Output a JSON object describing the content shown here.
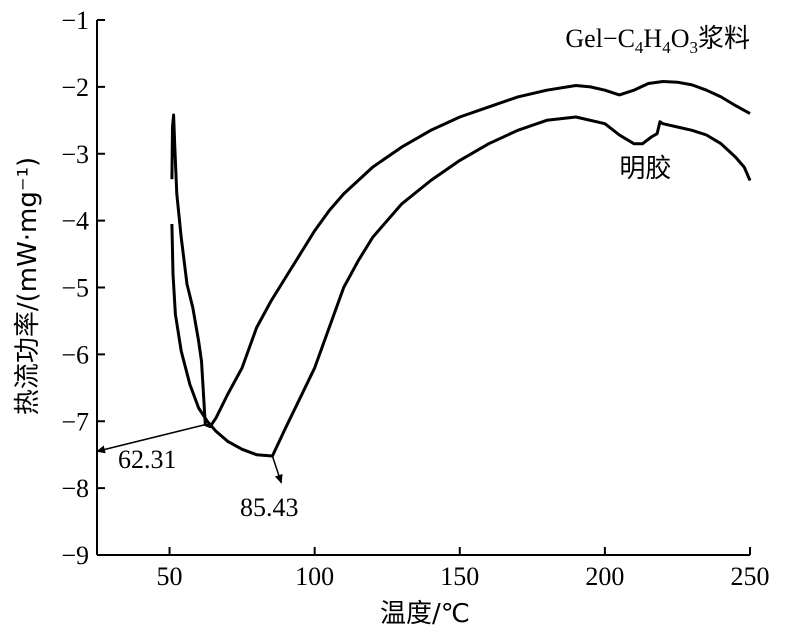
{
  "chart_data": {
    "type": "line",
    "xlabel": "温度/℃",
    "ylabel": "热流功率/(mW·mg⁻¹)",
    "xlim": [
      25,
      250
    ],
    "ylim": [
      -9,
      -1
    ],
    "xticks": [
      50,
      100,
      150,
      200,
      250
    ],
    "yticks": [
      -1,
      -2,
      -3,
      -4,
      -5,
      -6,
      -7,
      -8,
      -9
    ],
    "xtick_labels": [
      "50",
      "100",
      "150",
      "200",
      "250"
    ],
    "ytick_labels": [
      "−1",
      "−2",
      "−3",
      "−4",
      "−5",
      "−6",
      "−7",
      "−8",
      "−9"
    ],
    "grid": false,
    "series": [
      {
        "name": "明胶",
        "label_parts": [
          {
            "t": "明胶"
          }
        ],
        "values": [
          [
            50.8,
            -4.05
          ],
          [
            51.2,
            -4.8
          ],
          [
            52,
            -5.4
          ],
          [
            54,
            -5.95
          ],
          [
            57,
            -6.45
          ],
          [
            60,
            -6.8
          ],
          [
            63,
            -7.0
          ],
          [
            66,
            -7.15
          ],
          [
            70,
            -7.3
          ],
          [
            75,
            -7.42
          ],
          [
            80,
            -7.5
          ],
          [
            85.43,
            -7.52
          ],
          [
            90,
            -7.1
          ],
          [
            95,
            -6.65
          ],
          [
            100,
            -6.2
          ],
          [
            105,
            -5.6
          ],
          [
            110,
            -5.0
          ],
          [
            115,
            -4.6
          ],
          [
            120,
            -4.25
          ],
          [
            130,
            -3.75
          ],
          [
            140,
            -3.4
          ],
          [
            150,
            -3.1
          ],
          [
            160,
            -2.85
          ],
          [
            170,
            -2.65
          ],
          [
            180,
            -2.5
          ],
          [
            190,
            -2.45
          ],
          [
            200,
            -2.55
          ],
          [
            205,
            -2.72
          ],
          [
            210,
            -2.85
          ],
          [
            213,
            -2.85
          ],
          [
            216,
            -2.75
          ],
          [
            218,
            -2.7
          ],
          [
            219,
            -2.52
          ],
          [
            220,
            -2.55
          ],
          [
            225,
            -2.6
          ],
          [
            230,
            -2.65
          ],
          [
            235,
            -2.72
          ],
          [
            240,
            -2.85
          ],
          [
            245,
            -3.05
          ],
          [
            248,
            -3.2
          ],
          [
            250,
            -3.4
          ]
        ]
      },
      {
        "name": "Gel−C4H4O3浆料",
        "label_parts": [
          {
            "t": "Gel−C"
          },
          {
            "t": "4",
            "sub": true
          },
          {
            "t": "H"
          },
          {
            "t": "4",
            "sub": true
          },
          {
            "t": "O"
          },
          {
            "t": "3",
            "sub": true
          },
          {
            "t": "浆料"
          }
        ],
        "values": [
          [
            50.8,
            -3.38
          ],
          [
            51.0,
            -2.6
          ],
          [
            51.4,
            -2.42
          ],
          [
            51.8,
            -2.9
          ],
          [
            52.5,
            -3.6
          ],
          [
            54,
            -4.25
          ],
          [
            56,
            -4.95
          ],
          [
            58,
            -5.3
          ],
          [
            60,
            -5.8
          ],
          [
            61,
            -6.1
          ],
          [
            62.31,
            -7.05
          ],
          [
            64,
            -7.08
          ],
          [
            66,
            -6.95
          ],
          [
            70,
            -6.6
          ],
          [
            75,
            -6.2
          ],
          [
            80,
            -5.6
          ],
          [
            85,
            -5.2
          ],
          [
            90,
            -4.85
          ],
          [
            95,
            -4.5
          ],
          [
            100,
            -4.15
          ],
          [
            105,
            -3.85
          ],
          [
            110,
            -3.6
          ],
          [
            120,
            -3.2
          ],
          [
            130,
            -2.9
          ],
          [
            140,
            -2.65
          ],
          [
            150,
            -2.45
          ],
          [
            160,
            -2.3
          ],
          [
            170,
            -2.15
          ],
          [
            180,
            -2.05
          ],
          [
            190,
            -1.98
          ],
          [
            195,
            -2.0
          ],
          [
            200,
            -2.05
          ],
          [
            205,
            -2.12
          ],
          [
            210,
            -2.05
          ],
          [
            215,
            -1.95
          ],
          [
            220,
            -1.92
          ],
          [
            225,
            -1.93
          ],
          [
            230,
            -1.97
          ],
          [
            235,
            -2.05
          ],
          [
            240,
            -2.15
          ],
          [
            245,
            -2.28
          ],
          [
            250,
            -2.4
          ]
        ]
      }
    ],
    "annotations": [
      {
        "text": "62.31",
        "x": 62.31,
        "y": -7.05
      },
      {
        "text": "85.43",
        "x": 85.43,
        "y": -7.52
      }
    ]
  }
}
